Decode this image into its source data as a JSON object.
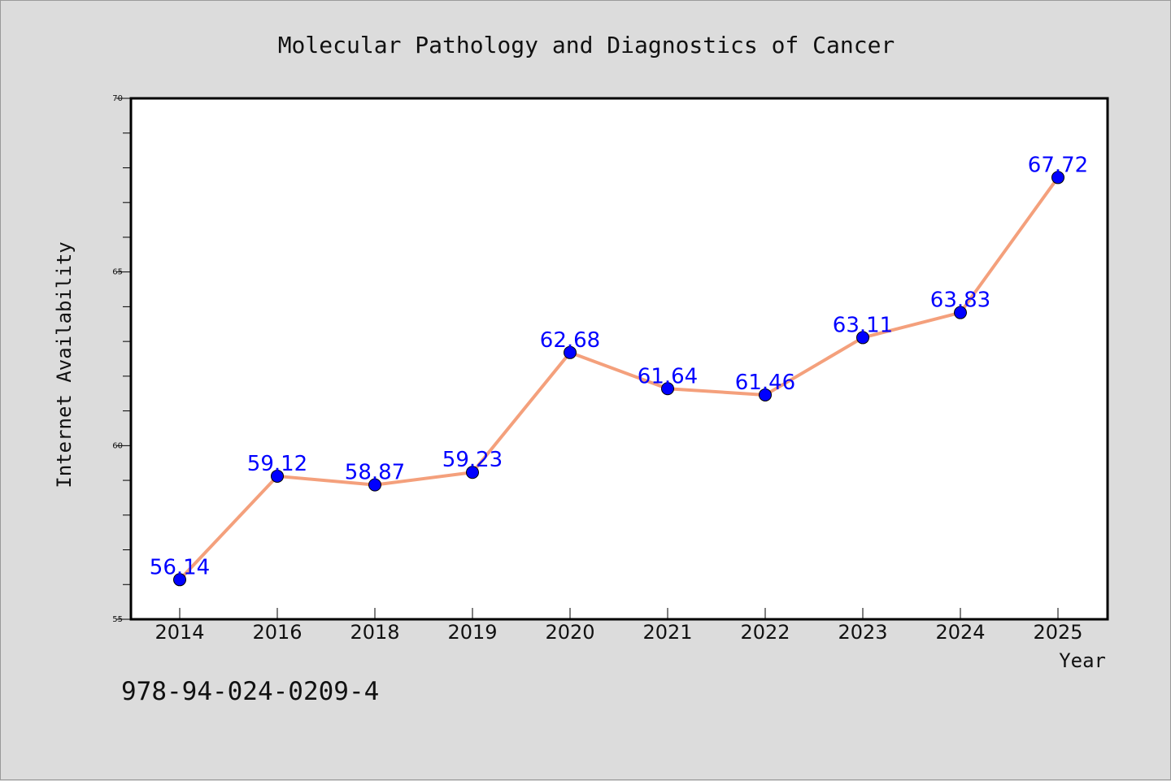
{
  "chart_data": {
    "type": "line",
    "title": "Molecular Pathology and Diagnostics of Cancer",
    "xlabel": "Year",
    "ylabel": "Internet Availability",
    "categories": [
      "2014",
      "2016",
      "2018",
      "2019",
      "2020",
      "2021",
      "2022",
      "2023",
      "2024",
      "2025"
    ],
    "series": [
      {
        "values": [
          56.14,
          59.12,
          58.87,
          59.23,
          62.68,
          61.64,
          61.46,
          63.11,
          63.83,
          67.72
        ],
        "labels": [
          "56.14",
          "59.12",
          "58.87",
          "59.23",
          "62.68",
          "61.64",
          "61.46",
          "63.11",
          "63.83",
          "67.72"
        ]
      }
    ],
    "ylim": [
      55,
      70
    ],
    "yticks": [
      "55",
      "60",
      "65",
      "70"
    ],
    "line_color": "#f4a07c",
    "marker_color": "#0000ff",
    "label_color": "#0000ff",
    "grid": false
  },
  "footer": {
    "code": "978-94-024-0209-4"
  }
}
